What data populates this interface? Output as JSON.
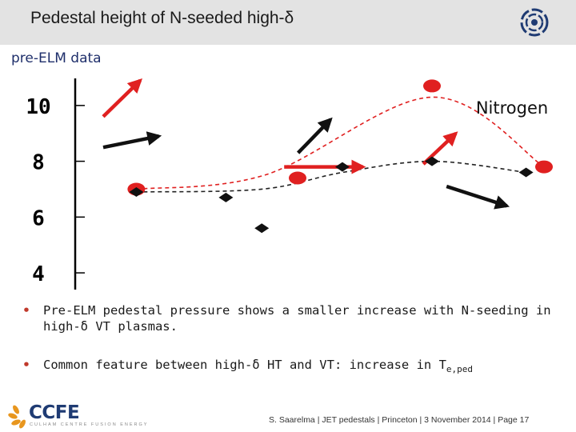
{
  "header": {
    "title": "Pedestal height of N-seeded high-δ"
  },
  "subtitle": "pre-ELM data",
  "chart_data": {
    "type": "scatter",
    "title": "",
    "xlabel": "",
    "ylabel": "",
    "annotation": "Nitrogen",
    "y_ticks": [
      "10",
      "8",
      "6",
      "4"
    ],
    "ylim": [
      3.4,
      11.2
    ],
    "xlim": [
      0,
      1
    ],
    "grid": false,
    "series": [
      {
        "marker": "circle",
        "color": "#e02020",
        "x": [
          0.09,
          0.45,
          0.75,
          1.0
        ],
        "y": [
          7.0,
          7.4,
          10.7,
          7.8
        ],
        "line": "dashed",
        "line_color": "#e02020"
      },
      {
        "marker": "diamond",
        "color": "#111111",
        "x": [
          0.09,
          0.29,
          0.37,
          0.55,
          0.75,
          0.96
        ],
        "y": [
          6.9,
          6.7,
          5.6,
          7.8,
          8.0,
          7.6
        ],
        "line": "dashed",
        "line_color": "#222222"
      }
    ],
    "arrows": [
      {
        "color": "#e02020",
        "from": [
          0.05,
          9.6
        ],
        "to": [
          0.13,
          10.9
        ]
      },
      {
        "color": "#111111",
        "from": [
          0.05,
          8.5
        ],
        "to": [
          0.17,
          8.9
        ]
      },
      {
        "color": "#111111",
        "from": [
          0.47,
          8.3
        ],
        "to": [
          0.54,
          9.5
        ]
      },
      {
        "color": "#e02020",
        "from": [
          0.44,
          7.8
        ],
        "to": [
          0.61,
          7.8
        ]
      },
      {
        "color": "#e02020",
        "from": [
          0.74,
          7.9
        ],
        "to": [
          0.81,
          9.0
        ]
      },
      {
        "color": "#111111",
        "from": [
          0.79,
          7.1
        ],
        "to": [
          0.92,
          6.4
        ]
      }
    ]
  },
  "bullets": [
    {
      "text": "Pre-ELM pedestal pressure shows a smaller increase with N-seeding in high-δ VT plasmas."
    },
    {
      "text_main": "Common feature between high-δ HT and VT: increase in T",
      "text_sub": "e,ped"
    }
  ],
  "footer": {
    "brand": "CCFE",
    "brand_sub": "CULHAM CENTRE FUSION ENERGY",
    "citation": "S. Saarelma | JET pedestals | Princeton | 3 November 2014 | Page 17"
  },
  "colors": {
    "red": "#e02020",
    "black": "#111111",
    "header_bg": "#e3e3e3",
    "subtitle": "#1f2f6b",
    "brand": "#1f3b73",
    "logo_orange": "#e8961e"
  }
}
